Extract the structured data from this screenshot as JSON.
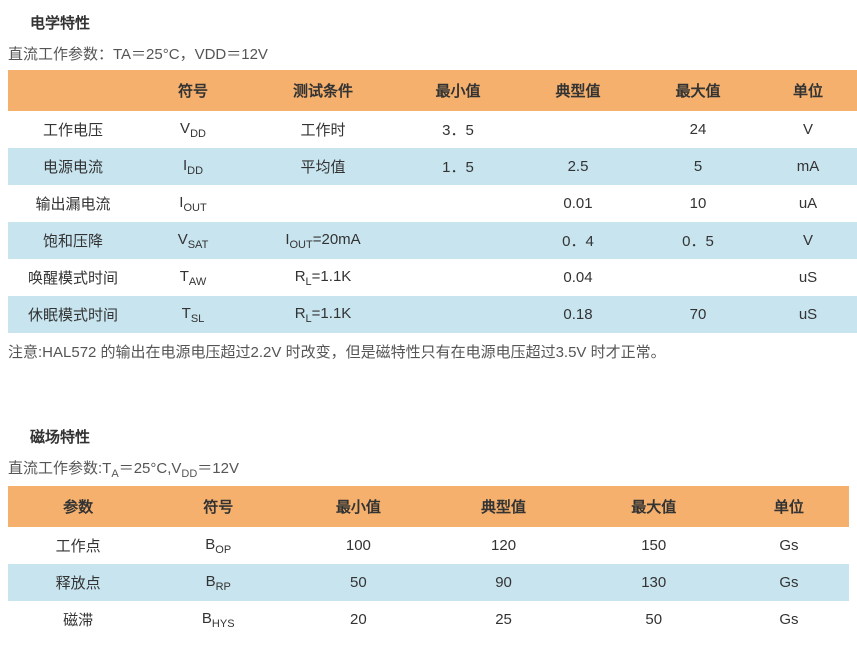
{
  "section1": {
    "title": "电学特性",
    "subtitle": "直流工作参数：TA＝25°C，VDD＝12V",
    "headers": [
      "",
      "符号",
      "测试条件",
      "最小值",
      "典型值",
      "最大值",
      "单位"
    ],
    "rows": [
      {
        "param": "工作电压",
        "sym_main": "V",
        "sym_sub": "DD",
        "cond": "工作时",
        "min": "3．5",
        "typ": "",
        "max": "24",
        "unit": "V"
      },
      {
        "param": "电源电流",
        "sym_main": "I",
        "sym_sub": "DD",
        "cond": "平均值",
        "min": "1．5",
        "typ": "2.5",
        "max": "5",
        "unit": "mA"
      },
      {
        "param": "输出漏电流",
        "sym_main": "I",
        "sym_sub": "OUT",
        "cond": "",
        "min": "",
        "typ": "0.01",
        "max": "10",
        "unit": "uA"
      },
      {
        "param": "饱和压降",
        "sym_main": "V",
        "sym_sub": "SAT",
        "cond_main": "I",
        "cond_sub": "OUT",
        "cond_rest": "=20mA",
        "min": "",
        "typ": "0．4",
        "max": "0．5",
        "unit": "V"
      },
      {
        "param": "唤醒模式时间",
        "sym_main": "T",
        "sym_sub": "AW",
        "cond_main": "R",
        "cond_sub": "L",
        "cond_rest": "=1.1K",
        "min": "",
        "typ": "0.04",
        "max": "",
        "unit": "uS"
      },
      {
        "param": "休眠模式时间",
        "sym_main": "T",
        "sym_sub": "SL",
        "cond_main": "R",
        "cond_sub": "L",
        "cond_rest": "=1.1K",
        "min": "",
        "typ": "0.18",
        "max": "70",
        "unit": "uS"
      }
    ],
    "note": "注意:HAL572 的输出在电源电压超过2.2V 时改变，但是磁特性只有在电源电压超过3.5V 时才正常。"
  },
  "section2": {
    "title": "磁场特性",
    "subtitle_pre": "直流工作参数:T",
    "subtitle_sub1": "A",
    "subtitle_mid": "＝25°C,V",
    "subtitle_sub2": "DD",
    "subtitle_post": "＝12V",
    "headers": [
      "参数",
      "符号",
      "最小值",
      "典型值",
      "最大值",
      "单位"
    ],
    "rows": [
      {
        "param": "工作点",
        "sym_main": "B",
        "sym_sub": "OP",
        "min": "100",
        "typ": "120",
        "max": "150",
        "unit": "Gs"
      },
      {
        "param": "释放点",
        "sym_main": "B",
        "sym_sub": "RP",
        "min": "50",
        "typ": "90",
        "max": "130",
        "unit": "Gs"
      },
      {
        "param": "磁滞",
        "sym_main": "B",
        "sym_sub": "HYS",
        "min": "20",
        "typ": "25",
        "max": "50",
        "unit": "Gs"
      }
    ]
  },
  "style": {
    "header_bg": "#f5b06d",
    "row_odd_bg": "#c7e4ef",
    "row_even_bg": "#ffffff",
    "text_color": "#333333",
    "muted_text": "#555555",
    "font_size_pt": 15,
    "sub_font_size_pt": 11
  }
}
